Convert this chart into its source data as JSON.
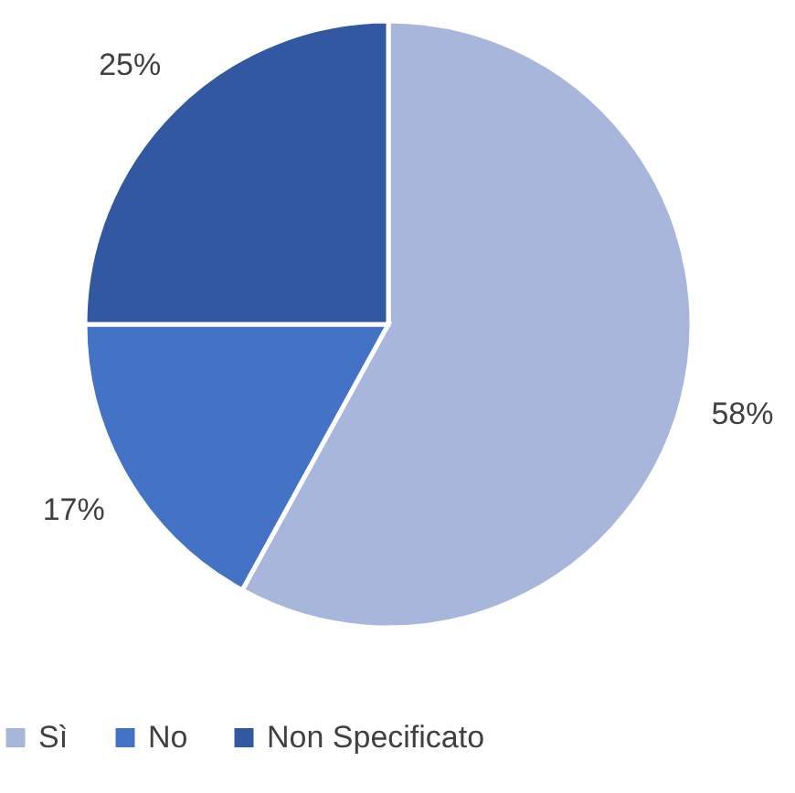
{
  "chart_data": {
    "type": "pie",
    "categories": [
      "Sì",
      "No",
      "Non Specificato"
    ],
    "values": [
      58,
      17,
      25
    ],
    "colors": [
      "#a9b6dc",
      "#4472c4",
      "#3158a0"
    ],
    "value_labels": [
      "58%",
      "17%",
      "25%"
    ],
    "legend": "bottom"
  }
}
